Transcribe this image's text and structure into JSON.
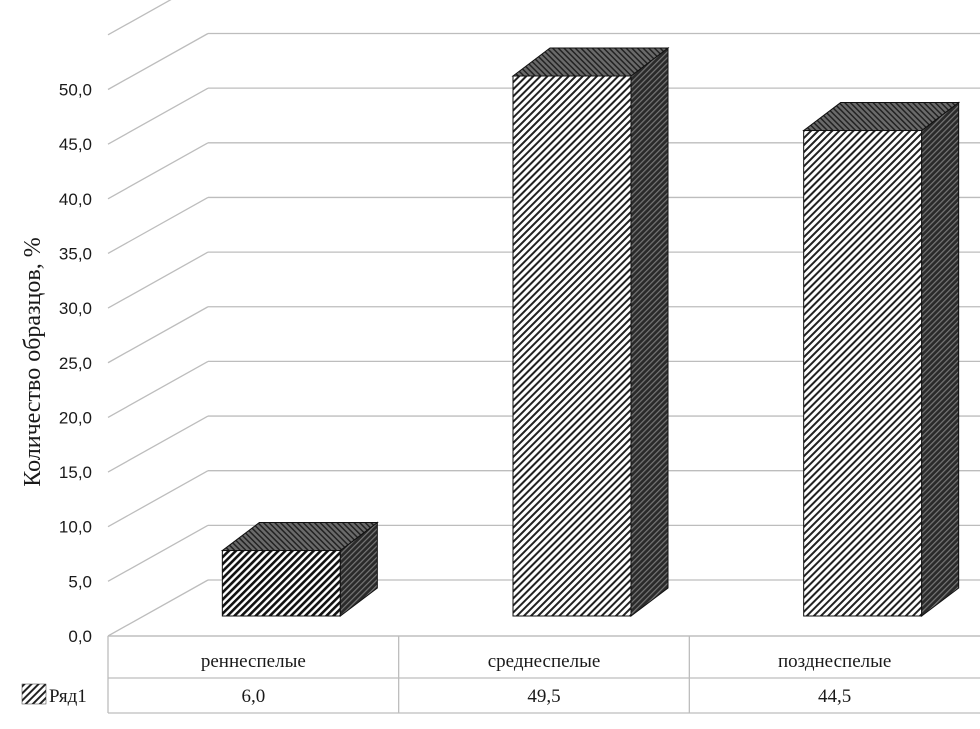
{
  "chart_data": {
    "type": "bar",
    "style": "3d-column with data table",
    "ylabel": "Количество образцов, %",
    "ylim": [
      0,
      55
    ],
    "yticks": [
      "0,0",
      "5,0",
      "10,0",
      "15,0",
      "20,0",
      "25,0",
      "30,0",
      "35,0",
      "40,0",
      "45,0",
      "50,0"
    ],
    "grid": true,
    "categories": [
      "реннеспелые",
      "среднеспелые",
      "позднеспелые"
    ],
    "series": [
      {
        "name": "Ряд1",
        "values": [
          6.0,
          49.5,
          44.5
        ],
        "value_labels": [
          "6,0",
          "49,5",
          "44,5"
        ]
      }
    ]
  }
}
